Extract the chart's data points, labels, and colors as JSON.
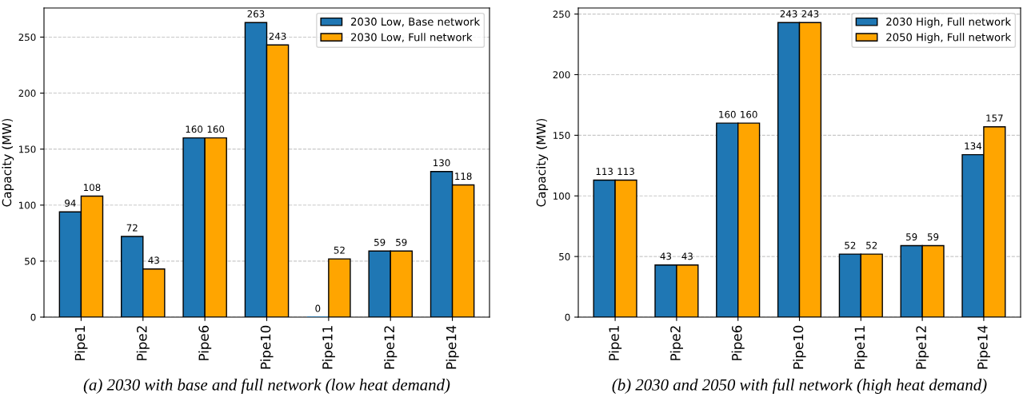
{
  "chart_data": [
    {
      "type": "bar",
      "ylabel": "Capacity (MW)",
      "categories": [
        "Pipe1",
        "Pipe2",
        "Pipe6",
        "Pipe10",
        "Pipe11",
        "Pipe12",
        "Pipe14"
      ],
      "series": [
        {
          "name": "2030 Low, Base network",
          "color": "#1f77b4",
          "values": [
            94,
            72,
            160,
            263,
            0,
            59,
            130
          ]
        },
        {
          "name": "2030 Low, Full network",
          "color": "#ffa500",
          "values": [
            108,
            43,
            160,
            243,
            52,
            59,
            118
          ]
        }
      ],
      "ylim": [
        0,
        276
      ],
      "yticks": [
        0,
        50,
        100,
        150,
        200,
        250
      ],
      "grid": "y",
      "legend": "top right",
      "data_labels": true,
      "annotations": [
        "(a) 2030 with base and full network (low heat demand)"
      ]
    },
    {
      "type": "bar",
      "ylabel": "Capacity (MW)",
      "categories": [
        "Pipe1",
        "Pipe2",
        "Pipe6",
        "Pipe10",
        "Pipe11",
        "Pipe12",
        "Pipe14"
      ],
      "series": [
        {
          "name": "2030 High, Full network",
          "color": "#1f77b4",
          "values": [
            113,
            43,
            160,
            243,
            52,
            59,
            134
          ]
        },
        {
          "name": "2050 High, Full network",
          "color": "#ffa500",
          "values": [
            113,
            43,
            160,
            243,
            52,
            59,
            157
          ]
        }
      ],
      "ylim": [
        0,
        255
      ],
      "yticks": [
        0,
        50,
        100,
        150,
        200,
        250
      ],
      "grid": "y",
      "legend": "top right",
      "data_labels": true,
      "annotations": [
        "(b) 2030 and 2050 with full network (high heat demand)"
      ]
    }
  ]
}
